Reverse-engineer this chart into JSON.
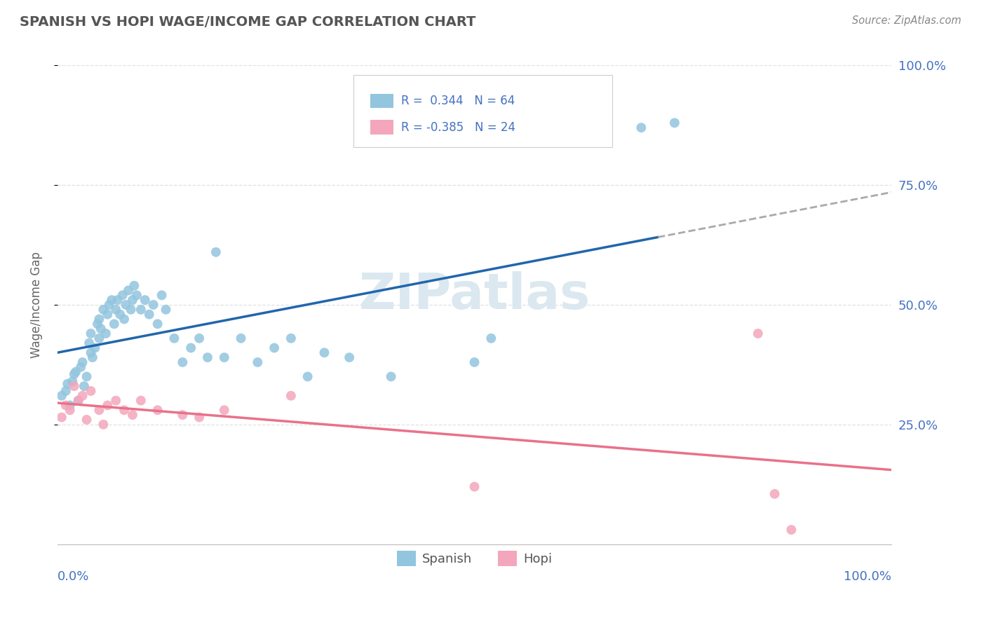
{
  "title": "SPANISH VS HOPI WAGE/INCOME GAP CORRELATION CHART",
  "source_text": "Source: ZipAtlas.com",
  "ylabel": "Wage/Income Gap",
  "legend_label1": "Spanish",
  "legend_label2": "Hopi",
  "R_spanish": 0.344,
  "N_spanish": 64,
  "R_hopi": -0.385,
  "N_hopi": 24,
  "spanish_color": "#92c5de",
  "hopi_color": "#f4a6bc",
  "spanish_line_color": "#2166ac",
  "hopi_line_color": "#e8728a",
  "dashed_line_color": "#aaaaaa",
  "background_color": "#ffffff",
  "grid_color": "#dddddd",
  "axis_label_color": "#4472c4",
  "title_color": "#555555",
  "watermark_color": "#dbe8f0",
  "spanish_points_x": [
    0.005,
    0.01,
    0.012,
    0.015,
    0.018,
    0.02,
    0.022,
    0.025,
    0.028,
    0.03,
    0.032,
    0.035,
    0.038,
    0.04,
    0.04,
    0.042,
    0.045,
    0.048,
    0.05,
    0.05,
    0.052,
    0.055,
    0.058,
    0.06,
    0.062,
    0.065,
    0.068,
    0.07,
    0.072,
    0.075,
    0.078,
    0.08,
    0.082,
    0.085,
    0.088,
    0.09,
    0.092,
    0.095,
    0.1,
    0.105,
    0.11,
    0.115,
    0.12,
    0.125,
    0.13,
    0.14,
    0.15,
    0.16,
    0.17,
    0.18,
    0.19,
    0.2,
    0.22,
    0.24,
    0.26,
    0.28,
    0.3,
    0.32,
    0.35,
    0.4,
    0.5,
    0.52,
    0.7,
    0.74
  ],
  "spanish_points_y": [
    0.31,
    0.32,
    0.335,
    0.29,
    0.34,
    0.355,
    0.36,
    0.3,
    0.37,
    0.38,
    0.33,
    0.35,
    0.42,
    0.4,
    0.44,
    0.39,
    0.41,
    0.46,
    0.43,
    0.47,
    0.45,
    0.49,
    0.44,
    0.48,
    0.5,
    0.51,
    0.46,
    0.49,
    0.51,
    0.48,
    0.52,
    0.47,
    0.5,
    0.53,
    0.49,
    0.51,
    0.54,
    0.52,
    0.49,
    0.51,
    0.48,
    0.5,
    0.46,
    0.52,
    0.49,
    0.43,
    0.38,
    0.41,
    0.43,
    0.39,
    0.61,
    0.39,
    0.43,
    0.38,
    0.41,
    0.43,
    0.35,
    0.4,
    0.39,
    0.35,
    0.38,
    0.43,
    0.87,
    0.88
  ],
  "hopi_points_x": [
    0.005,
    0.01,
    0.015,
    0.02,
    0.025,
    0.03,
    0.035,
    0.04,
    0.05,
    0.055,
    0.06,
    0.07,
    0.08,
    0.09,
    0.1,
    0.12,
    0.15,
    0.17,
    0.2,
    0.28,
    0.5,
    0.84,
    0.86,
    0.88
  ],
  "hopi_points_y": [
    0.265,
    0.29,
    0.28,
    0.33,
    0.3,
    0.31,
    0.26,
    0.32,
    0.28,
    0.25,
    0.29,
    0.3,
    0.28,
    0.27,
    0.3,
    0.28,
    0.27,
    0.265,
    0.28,
    0.31,
    0.12,
    0.44,
    0.105,
    0.03
  ],
  "watermark": "ZIPatlas",
  "xlim": [
    0,
    1.0
  ],
  "ylim": [
    0,
    1.0
  ],
  "yticks": [
    0.25,
    0.5,
    0.75,
    1.0
  ],
  "ytick_labels": [
    "25.0%",
    "50.0%",
    "75.0%",
    "100.0%"
  ]
}
